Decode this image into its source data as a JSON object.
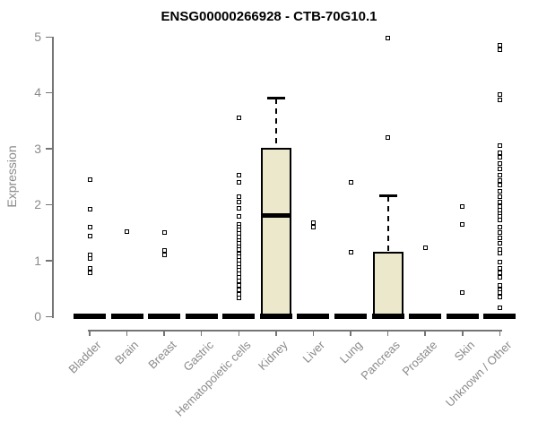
{
  "title": "ENSG00000266928 - CTB-70G10.1",
  "colors": {
    "box_fill": "#ECE8CC",
    "box_border": "#000000",
    "axis": "#757575",
    "tick_text": "#8A8A8A",
    "title_text": "#000000",
    "point": "#000000"
  },
  "chart_data": {
    "type": "boxplot",
    "title": "ENSG00000266928 - CTB-70G10.1",
    "xlabel": "",
    "ylabel": "Expression",
    "ylim": [
      0,
      5
    ],
    "yticks": [
      0,
      1,
      2,
      3,
      4,
      5
    ],
    "grid": false,
    "legend": false,
    "categories": [
      "Bladder",
      "Brain",
      "Breast",
      "Gastric",
      "Hematopoietic cells",
      "Kidney",
      "Liver",
      "Lung",
      "Pancreas",
      "Prostate",
      "Skin",
      "Unknown / Other"
    ],
    "series": [
      {
        "category": "Bladder",
        "q1": 0,
        "median": 0,
        "q3": 0,
        "whisker_low": 0,
        "whisker_high": 0,
        "outliers": [
          2.45,
          1.92,
          1.6,
          1.44,
          1.1,
          1.03,
          0.86,
          0.78
        ]
      },
      {
        "category": "Brain",
        "q1": 0,
        "median": 0,
        "q3": 0,
        "whisker_low": 0,
        "whisker_high": 0,
        "outliers": [
          1.52
        ]
      },
      {
        "category": "Breast",
        "q1": 0,
        "median": 0,
        "q3": 0,
        "whisker_low": 0,
        "whisker_high": 0,
        "outliers": [
          1.5,
          1.17,
          1.09
        ]
      },
      {
        "category": "Gastric",
        "q1": 0,
        "median": 0,
        "q3": 0,
        "whisker_low": 0,
        "whisker_high": 0,
        "outliers": []
      },
      {
        "category": "Hematopoietic cells",
        "q1": 0,
        "median": 0,
        "q3": 0,
        "whisker_low": 0,
        "whisker_high": 0,
        "outliers": [
          3.55,
          2.52,
          2.4,
          2.14,
          2.05,
          1.93,
          1.78,
          1.65,
          1.6,
          1.54,
          1.48,
          1.42,
          1.36,
          1.3,
          1.25,
          1.2,
          1.12,
          1.06,
          1.0,
          0.94,
          0.88,
          0.82,
          0.76,
          0.7,
          0.64,
          0.55,
          0.48,
          0.4,
          0.33
        ]
      },
      {
        "category": "Kidney",
        "q1": 0,
        "median": 1.8,
        "q3": 3.02,
        "whisker_low": 0,
        "whisker_high": 3.9,
        "outliers": []
      },
      {
        "category": "Liver",
        "q1": 0,
        "median": 0,
        "q3": 0,
        "whisker_low": 0,
        "whisker_high": 0,
        "outliers": [
          1.68,
          1.6
        ]
      },
      {
        "category": "Lung",
        "q1": 0,
        "median": 0,
        "q3": 0,
        "whisker_low": 0,
        "whisker_high": 0,
        "outliers": [
          2.4,
          1.15
        ]
      },
      {
        "category": "Pancreas",
        "q1": 0,
        "median": 0,
        "q3": 1.15,
        "whisker_low": 0,
        "whisker_high": 2.15,
        "outliers": [
          4.98,
          3.2
        ]
      },
      {
        "category": "Prostate",
        "q1": 0,
        "median": 0,
        "q3": 0,
        "whisker_low": 0,
        "whisker_high": 0,
        "outliers": [
          1.22
        ]
      },
      {
        "category": "Skin",
        "q1": 0,
        "median": 0,
        "q3": 0,
        "whisker_low": 0,
        "whisker_high": 0,
        "outliers": [
          1.97,
          1.65,
          0.42
        ]
      },
      {
        "category": "Unknown / Other",
        "q1": 0,
        "median": 0,
        "q3": 0,
        "whisker_low": 0,
        "whisker_high": 0,
        "outliers": [
          4.84,
          4.76,
          3.97,
          3.87,
          3.05,
          2.93,
          2.85,
          2.74,
          2.64,
          2.53,
          2.43,
          2.34,
          2.24,
          2.14,
          2.04,
          1.97,
          1.9,
          1.84,
          1.78,
          1.72,
          1.6,
          1.5,
          1.4,
          1.3,
          1.2,
          1.13,
          0.97,
          0.86,
          0.78,
          0.7,
          0.55,
          0.48,
          0.42,
          0.35,
          0.16
        ]
      }
    ]
  }
}
